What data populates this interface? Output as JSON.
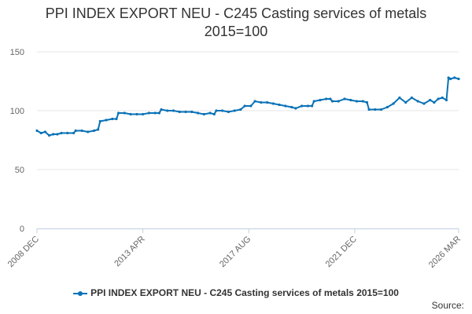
{
  "chart_data": {
    "type": "line",
    "title_lines": [
      "PPI INDEX EXPORT NEU - C245 Casting services of metals",
      "2015=100"
    ],
    "xlabel": "",
    "ylabel": "",
    "ylim": [
      0,
      150
    ],
    "yticks": [
      0,
      50,
      100,
      150
    ],
    "xlim": [
      "2008-12",
      "2026-03"
    ],
    "xtick_labels": [
      {
        "date": "2008-12",
        "label": "2008 DEC"
      },
      {
        "date": "2013-04",
        "label": "2013 APR"
      },
      {
        "date": "2017-08",
        "label": "2017 AUG"
      },
      {
        "date": "2021-12",
        "label": "2021 DEC"
      },
      {
        "date": "2026-03",
        "label": "2026 MAR"
      }
    ],
    "grid": "horizontal",
    "legend": "bottom",
    "series": [
      {
        "name": "PPI INDEX EXPORT NEU - C245 Casting services of metals 2015=100",
        "color": "#0a72b6",
        "points": [
          [
            "2008-12",
            83
          ],
          [
            "2009-02",
            81
          ],
          [
            "2009-04",
            82
          ],
          [
            "2009-06",
            79
          ],
          [
            "2009-08",
            80
          ],
          [
            "2009-10",
            80
          ],
          [
            "2009-12",
            81
          ],
          [
            "2010-03",
            81
          ],
          [
            "2010-06",
            81
          ],
          [
            "2010-07",
            83
          ],
          [
            "2010-10",
            83
          ],
          [
            "2011-01",
            82
          ],
          [
            "2011-04",
            83
          ],
          [
            "2011-06",
            84
          ],
          [
            "2011-07",
            91
          ],
          [
            "2011-10",
            92
          ],
          [
            "2012-01",
            93
          ],
          [
            "2012-03",
            93
          ],
          [
            "2012-04",
            98
          ],
          [
            "2012-07",
            98
          ],
          [
            "2012-10",
            97
          ],
          [
            "2013-01",
            97
          ],
          [
            "2013-04",
            97
          ],
          [
            "2013-07",
            98
          ],
          [
            "2013-10",
            98
          ],
          [
            "2013-12",
            98
          ],
          [
            "2014-01",
            101
          ],
          [
            "2014-04",
            100
          ],
          [
            "2014-07",
            100
          ],
          [
            "2014-10",
            99
          ],
          [
            "2015-01",
            99
          ],
          [
            "2015-04",
            99
          ],
          [
            "2015-07",
            98
          ],
          [
            "2015-10",
            97
          ],
          [
            "2016-01",
            98
          ],
          [
            "2016-03",
            97
          ],
          [
            "2016-04",
            100
          ],
          [
            "2016-07",
            100
          ],
          [
            "2016-10",
            99
          ],
          [
            "2017-01",
            100
          ],
          [
            "2017-04",
            101
          ],
          [
            "2017-06",
            104
          ],
          [
            "2017-09",
            104
          ],
          [
            "2017-11",
            108
          ],
          [
            "2018-02",
            107
          ],
          [
            "2018-05",
            107
          ],
          [
            "2018-08",
            106
          ],
          [
            "2018-11",
            105
          ],
          [
            "2019-02",
            104
          ],
          [
            "2019-05",
            103
          ],
          [
            "2019-07",
            102
          ],
          [
            "2019-10",
            104
          ],
          [
            "2020-01",
            104
          ],
          [
            "2020-03",
            104
          ],
          [
            "2020-04",
            108
          ],
          [
            "2020-07",
            109
          ],
          [
            "2020-10",
            110
          ],
          [
            "2020-12",
            110
          ],
          [
            "2021-01",
            108
          ],
          [
            "2021-04",
            108
          ],
          [
            "2021-07",
            110
          ],
          [
            "2021-10",
            109
          ],
          [
            "2022-01",
            108
          ],
          [
            "2022-04",
            108
          ],
          [
            "2022-06",
            107
          ],
          [
            "2022-07",
            101
          ],
          [
            "2022-10",
            101
          ],
          [
            "2023-01",
            101
          ],
          [
            "2023-04",
            103
          ],
          [
            "2023-07",
            106
          ],
          [
            "2023-10",
            111
          ],
          [
            "2024-01",
            107
          ],
          [
            "2024-04",
            111
          ],
          [
            "2024-07",
            108
          ],
          [
            "2024-10",
            106
          ],
          [
            "2025-01",
            109
          ],
          [
            "2025-03",
            107
          ],
          [
            "2025-05",
            110
          ],
          [
            "2025-07",
            111
          ],
          [
            "2025-09",
            109
          ],
          [
            "2025-10",
            128
          ],
          [
            "2025-11",
            127
          ],
          [
            "2026-01",
            128
          ],
          [
            "2026-03",
            127
          ]
        ]
      }
    ]
  },
  "source_label": "Source:"
}
